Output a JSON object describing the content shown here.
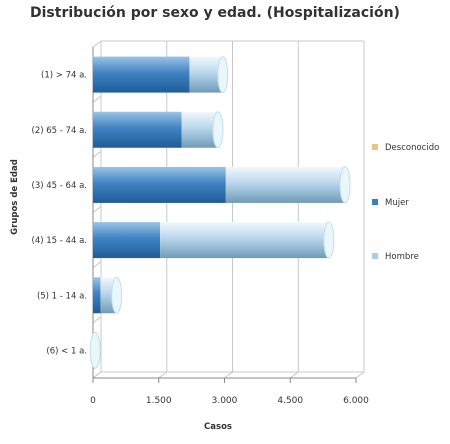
{
  "chart_data": {
    "type": "bar",
    "orientation": "horizontal",
    "stacked": true,
    "title": "Distribución por sexo y edad. (Hospitalización)",
    "xlabel": "Casos",
    "ylabel": "Grupos de Edad",
    "categories": [
      "(1) > 74 a.",
      "(2) 65 - 74 a.",
      "(3) 45 - 64 a.",
      "(4) 15 - 44 a.",
      "(5) 1 - 14 a.",
      "(6) < 1 a."
    ],
    "series": [
      {
        "name": "Desconocido",
        "values": [
          0,
          0,
          0,
          0,
          0,
          0
        ],
        "color": "#e8c880"
      },
      {
        "name": "Mujer",
        "values": [
          2200,
          2020,
          3030,
          1530,
          170,
          30
        ],
        "color": "#3a7fbf"
      },
      {
        "name": "Hombre",
        "values": [
          760,
          830,
          2720,
          3850,
          370,
          20
        ],
        "color": "#a9cde6"
      }
    ],
    "xlim": [
      0,
      6000
    ],
    "xticks": [
      0,
      1500,
      3000,
      4500,
      6000
    ],
    "xtick_labels": [
      "0",
      "1.500",
      "3.000",
      "4.500",
      "6.000"
    ],
    "grid": true,
    "legend_position": "right"
  }
}
